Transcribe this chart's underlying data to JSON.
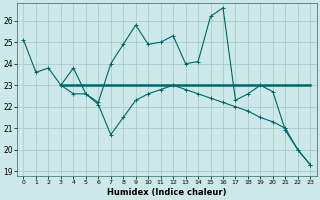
{
  "xlabel": "Humidex (Indice chaleur)",
  "background_color": "#cce8e8",
  "grid_color": "#aacccc",
  "line_color": "#006666",
  "xlim": [
    -0.5,
    23.5
  ],
  "ylim": [
    18.8,
    26.8
  ],
  "yticks": [
    19,
    20,
    21,
    22,
    23,
    24,
    25,
    26
  ],
  "xticks": [
    0,
    1,
    2,
    3,
    4,
    5,
    6,
    7,
    8,
    9,
    10,
    11,
    12,
    13,
    14,
    15,
    16,
    17,
    18,
    19,
    20,
    21,
    22,
    23
  ],
  "series1_x": [
    0,
    1,
    2,
    3,
    4,
    5,
    6,
    7,
    8,
    9,
    10,
    11,
    12,
    13,
    14,
    15,
    16,
    17,
    18,
    19,
    20,
    21,
    22,
    23
  ],
  "series1_y": [
    25.1,
    23.6,
    23.8,
    23.0,
    23.8,
    22.6,
    22.2,
    24.0,
    24.9,
    25.8,
    24.9,
    25.0,
    25.3,
    24.0,
    24.1,
    26.2,
    26.6,
    22.3,
    22.6,
    23.0,
    22.7,
    20.9,
    20.0,
    19.3
  ],
  "series2_x": [
    3,
    23
  ],
  "series2_y": [
    23.0,
    23.0
  ],
  "series3_x": [
    3,
    4,
    5,
    6,
    7,
    8,
    9,
    10,
    11,
    12,
    13,
    14,
    15,
    16,
    17,
    18,
    19,
    20,
    21,
    22,
    23
  ],
  "series3_y": [
    23.0,
    22.6,
    22.6,
    22.1,
    20.7,
    21.5,
    22.3,
    22.6,
    22.8,
    23.0,
    22.8,
    22.6,
    22.4,
    22.2,
    22.0,
    21.8,
    21.5,
    21.3,
    21.0,
    20.0,
    19.3
  ]
}
